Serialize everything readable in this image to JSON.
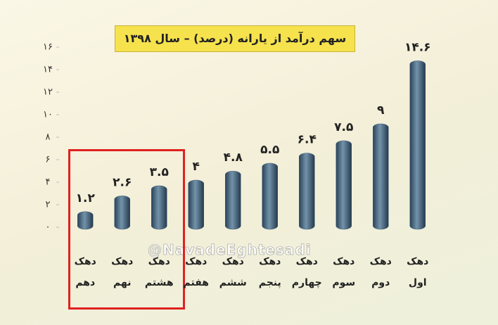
{
  "chart_data": {
    "type": "bar",
    "title": "سهم درآمد از یارانه (درصد) – سال ۱۳۹۸",
    "watermark": "@NavadeEghtesadi",
    "categories": [
      "دهک دهم",
      "دهک نهم",
      "دهک هشتم",
      "دهک هفتم",
      "دهک ششم",
      "دهک پنجم",
      "دهک چهارم",
      "دهک سوم",
      "دهک دوم",
      "دهک اول"
    ],
    "values": [
      1.2,
      2.6,
      3.5,
      4,
      4.8,
      5.5,
      6.4,
      7.5,
      9,
      14.6
    ],
    "value_labels": [
      "۱.۲",
      "۲.۶",
      "۳.۵",
      "۴",
      "۴.۸",
      "۵.۵",
      "۶.۴",
      "۷.۵",
      "۹",
      "۱۴.۶"
    ],
    "color": "#3d5a73",
    "ylim": [
      0,
      16
    ],
    "yticks": [
      {
        "value": 0,
        "label": "۰"
      },
      {
        "value": 2,
        "label": "۲"
      },
      {
        "value": 4,
        "label": "۴"
      },
      {
        "value": 6,
        "label": "۶"
      },
      {
        "value": 8,
        "label": "۸"
      },
      {
        "value": 10,
        "label": "۱۰"
      },
      {
        "value": 12,
        "label": "۱۲"
      },
      {
        "value": 14,
        "label": "۱۴"
      },
      {
        "value": 16,
        "label": "۱۶"
      }
    ],
    "grid": false
  }
}
